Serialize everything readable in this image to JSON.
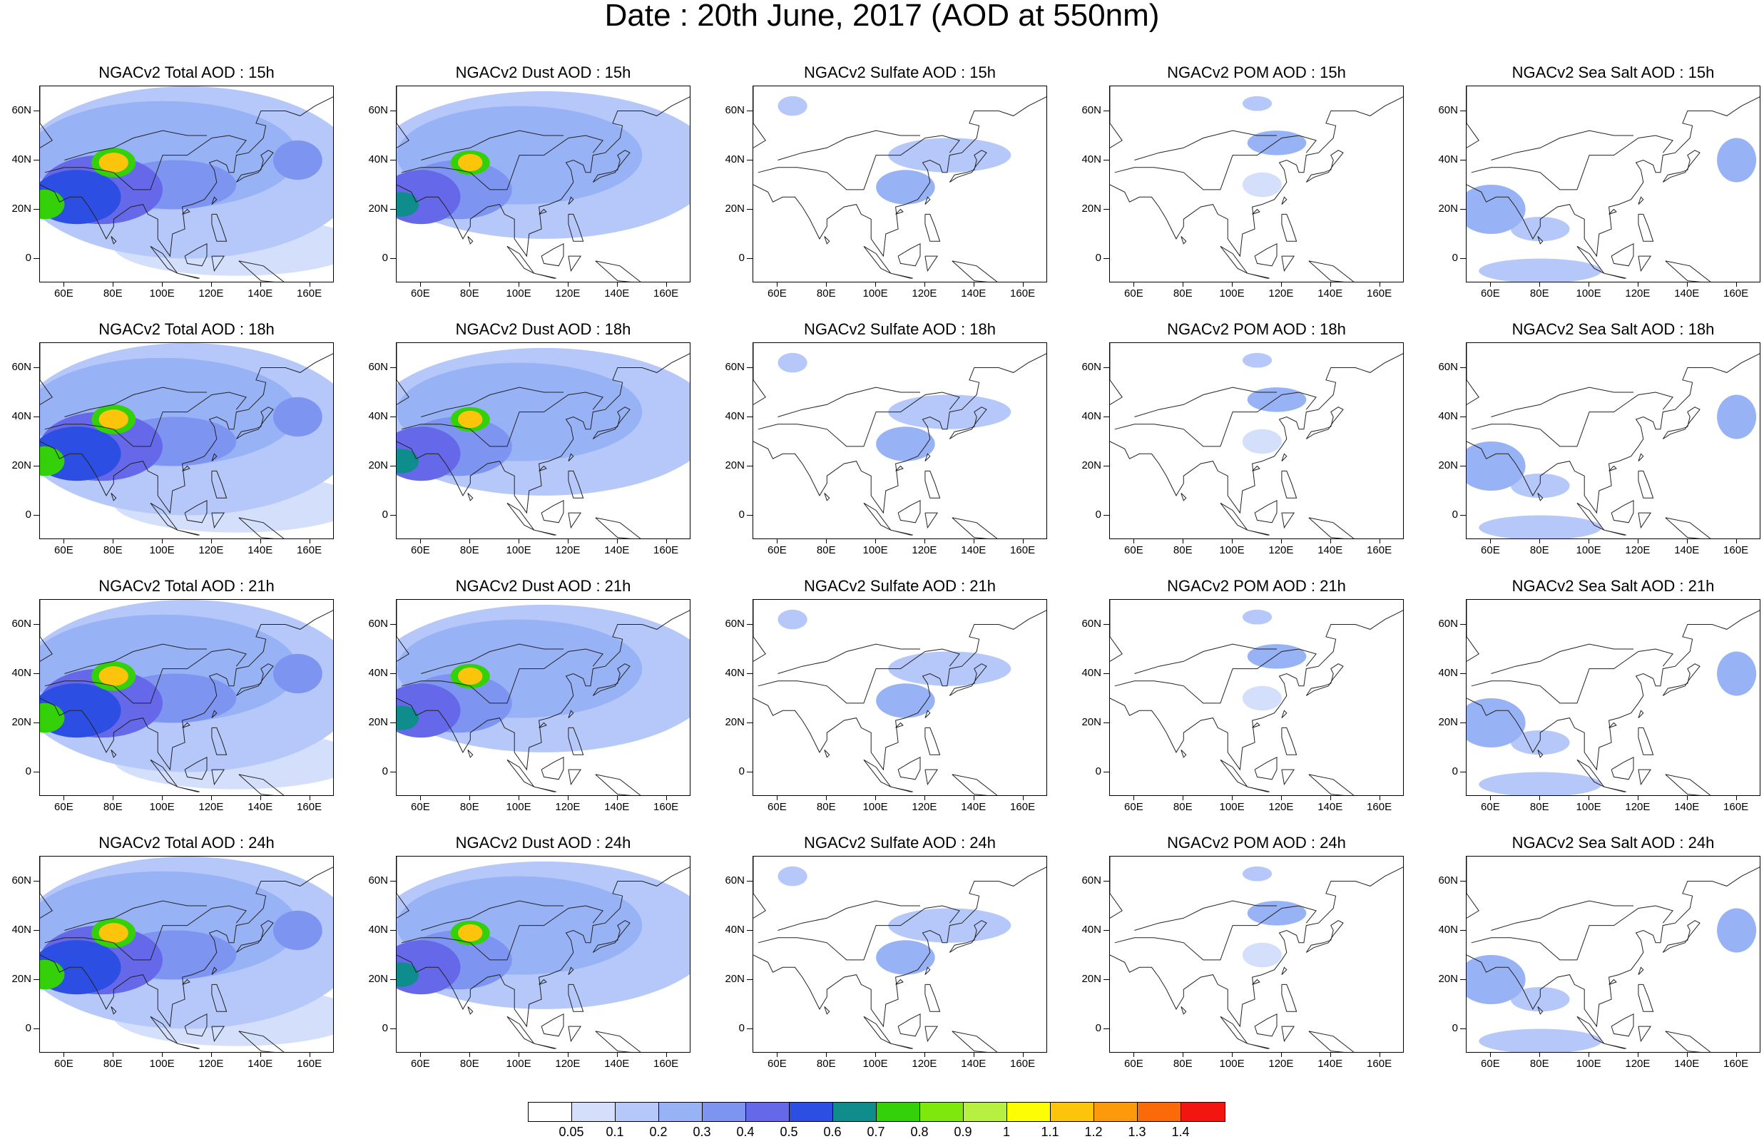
{
  "figure_title": "Date : 20th June, 2017 (AOD at 550nm)",
  "lat_ticks": [
    "60N",
    "40N",
    "20N",
    "0"
  ],
  "lon_ticks": [
    "60E",
    "80E",
    "100E",
    "120E",
    "140E",
    "160E"
  ],
  "colorbar": {
    "labels": [
      "0.05",
      "0.1",
      "0.2",
      "0.3",
      "0.4",
      "0.5",
      "0.6",
      "0.7",
      "0.8",
      "0.9",
      "1",
      "1.1",
      "1.2",
      "1.3",
      "1.4"
    ],
    "colors": [
      "#ffffff",
      "#d4dffc",
      "#b6c8fa",
      "#98b2f6",
      "#7d95f1",
      "#6468e9",
      "#2d4ee3",
      "#0f8c8c",
      "#34d10b",
      "#7ee80d",
      "#b7f041",
      "#fdfd05",
      "#fcc50b",
      "#fc9a0b",
      "#fb6a08",
      "#f31610"
    ]
  },
  "chart_data": [
    {
      "type": "heatmap",
      "title": "NGACv2 Total AOD : 15h",
      "species": "total",
      "hour": 15
    },
    {
      "type": "heatmap",
      "title": "NGACv2 Dust AOD : 15h",
      "species": "dust",
      "hour": 15
    },
    {
      "type": "heatmap",
      "title": "NGACv2 Sulfate AOD : 15h",
      "species": "sulfate",
      "hour": 15
    },
    {
      "type": "heatmap",
      "title": "NGACv2 POM AOD : 15h",
      "species": "pom",
      "hour": 15
    },
    {
      "type": "heatmap",
      "title": "NGACv2 Sea Salt AOD : 15h",
      "species": "seasalt",
      "hour": 15
    },
    {
      "type": "heatmap",
      "title": "NGACv2 Total AOD : 18h",
      "species": "total",
      "hour": 18
    },
    {
      "type": "heatmap",
      "title": "NGACv2 Dust AOD : 18h",
      "species": "dust",
      "hour": 18
    },
    {
      "type": "heatmap",
      "title": "NGACv2 Sulfate AOD : 18h",
      "species": "sulfate",
      "hour": 18
    },
    {
      "type": "heatmap",
      "title": "NGACv2 POM AOD : 18h",
      "species": "pom",
      "hour": 18
    },
    {
      "type": "heatmap",
      "title": "NGACv2 Sea Salt AOD : 18h",
      "species": "seasalt",
      "hour": 18
    },
    {
      "type": "heatmap",
      "title": "NGACv2 Total AOD : 21h",
      "species": "total",
      "hour": 21
    },
    {
      "type": "heatmap",
      "title": "NGACv2 Dust AOD : 21h",
      "species": "dust",
      "hour": 21
    },
    {
      "type": "heatmap",
      "title": "NGACv2 Sulfate AOD : 21h",
      "species": "sulfate",
      "hour": 21
    },
    {
      "type": "heatmap",
      "title": "NGACv2 POM AOD : 21h",
      "species": "pom",
      "hour": 21
    },
    {
      "type": "heatmap",
      "title": "NGACv2 Sea Salt AOD : 21h",
      "species": "seasalt",
      "hour": 21
    },
    {
      "type": "heatmap",
      "title": "NGACv2 Total AOD : 24h",
      "species": "total",
      "hour": 24
    },
    {
      "type": "heatmap",
      "title": "NGACv2 Dust AOD : 24h",
      "species": "dust",
      "hour": 24
    },
    {
      "type": "heatmap",
      "title": "NGACv2 Sulfate AOD : 24h",
      "species": "sulfate",
      "hour": 24
    },
    {
      "type": "heatmap",
      "title": "NGACv2 POM AOD : 24h",
      "species": "pom",
      "hour": 24
    },
    {
      "type": "heatmap",
      "title": "NGACv2 Sea Salt  AOD : 24h",
      "species": "seasalt",
      "hour": 24
    }
  ],
  "map_extent": {
    "lon_range": [
      50,
      170
    ],
    "lat_range": [
      -10,
      70
    ]
  },
  "blobs": {
    "total": [
      {
        "lon": 80,
        "lat": 39,
        "rx": 6,
        "ry": 4,
        "v": 1.15
      },
      {
        "lon": 80,
        "lat": 39,
        "rx": 9,
        "ry": 6,
        "v": 0.75
      },
      {
        "lon": 65,
        "lat": 25,
        "rx": 18,
        "ry": 11,
        "v": 0.55
      },
      {
        "lon": 52,
        "lat": 22,
        "rx": 8,
        "ry": 6,
        "v": 0.72
      },
      {
        "lon": 75,
        "lat": 28,
        "rx": 25,
        "ry": 14,
        "v": 0.4
      },
      {
        "lon": 105,
        "lat": 30,
        "rx": 25,
        "ry": 10,
        "v": 0.3
      },
      {
        "lon": 155,
        "lat": 40,
        "rx": 10,
        "ry": 8,
        "v": 0.35
      },
      {
        "lon": 100,
        "lat": 42,
        "rx": 55,
        "ry": 22,
        "v": 0.22
      },
      {
        "lon": 110,
        "lat": 35,
        "rx": 70,
        "ry": 35,
        "v": 0.12
      },
      {
        "lon": 130,
        "lat": 5,
        "rx": 50,
        "ry": 12,
        "v": 0.08
      }
    ],
    "dust": [
      {
        "lon": 80,
        "lat": 39,
        "rx": 5,
        "ry": 3.5,
        "v": 1.15
      },
      {
        "lon": 80,
        "lat": 39,
        "rx": 8,
        "ry": 5,
        "v": 0.78
      },
      {
        "lon": 60,
        "lat": 25,
        "rx": 16,
        "ry": 11,
        "v": 0.45
      },
      {
        "lon": 52,
        "lat": 22,
        "rx": 7,
        "ry": 5,
        "v": 0.62
      },
      {
        "lon": 75,
        "lat": 28,
        "rx": 22,
        "ry": 12,
        "v": 0.32
      },
      {
        "lon": 100,
        "lat": 42,
        "rx": 50,
        "ry": 20,
        "v": 0.2
      },
      {
        "lon": 110,
        "lat": 38,
        "rx": 70,
        "ry": 30,
        "v": 0.11
      }
    ],
    "sulfate": [
      {
        "lon": 112,
        "lat": 29,
        "rx": 12,
        "ry": 7,
        "v": 0.22
      },
      {
        "lon": 130,
        "lat": 42,
        "rx": 25,
        "ry": 7,
        "v": 0.12
      },
      {
        "lon": 66,
        "lat": 62,
        "rx": 6,
        "ry": 4,
        "v": 0.12
      }
    ],
    "pom": [
      {
        "lon": 118,
        "lat": 47,
        "rx": 12,
        "ry": 5,
        "v": 0.24
      },
      {
        "lon": 110,
        "lat": 63,
        "rx": 6,
        "ry": 3,
        "v": 0.11
      },
      {
        "lon": 112,
        "lat": 30,
        "rx": 8,
        "ry": 5,
        "v": 0.09
      }
    ],
    "seasalt": [
      {
        "lon": 160,
        "lat": 40,
        "rx": 8,
        "ry": 9,
        "v": 0.24
      },
      {
        "lon": 60,
        "lat": 20,
        "rx": 14,
        "ry": 10,
        "v": 0.2
      },
      {
        "lon": 80,
        "lat": 12,
        "rx": 12,
        "ry": 5,
        "v": 0.1
      },
      {
        "lon": 80,
        "lat": -5,
        "rx": 25,
        "ry": 5,
        "v": 0.1
      }
    ]
  }
}
